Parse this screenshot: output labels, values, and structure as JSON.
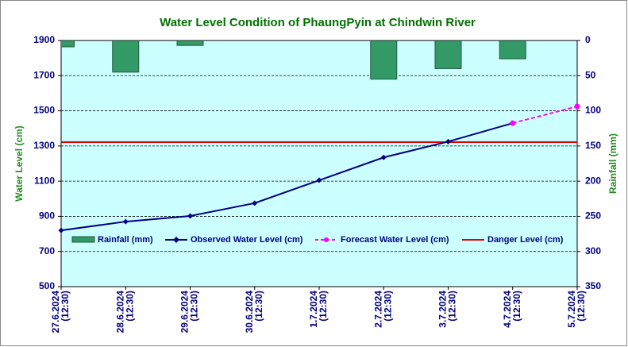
{
  "chart_data": {
    "type": "combo",
    "title": "Water Level Condition of PhaungPyin at Chindwin River",
    "y_label": "Water Level (cm)",
    "y2_label": "Rainfall (mm)",
    "categories": [
      [
        "27.6.2024",
        "(12:30)"
      ],
      [
        "28.6.2024",
        "(12:30)"
      ],
      [
        "29.6.2024",
        "(12:30)"
      ],
      [
        "30.6.2024",
        "(12:30)"
      ],
      [
        "1.7.2024",
        "(12:30)"
      ],
      [
        "2.7.2024",
        "(12:30)"
      ],
      [
        "3.7.2024",
        "(12:30)"
      ],
      [
        "4.7.2024",
        "(12:30)"
      ],
      [
        "5.7.2024",
        "(12:30)"
      ]
    ],
    "series": [
      {
        "name": "Rainfall (mm)",
        "type": "bar",
        "axis": "y2",
        "color": "#339966",
        "values": [
          9,
          45,
          7,
          0,
          0,
          55,
          40,
          26,
          0
        ]
      },
      {
        "name": "Observed Water Level (cm)",
        "type": "line",
        "color": "#000080",
        "dashed": false,
        "values": [
          820,
          870,
          902,
          975,
          1105,
          1235,
          1325,
          1430,
          null
        ]
      },
      {
        "name": "Forecast Water Level (cm)",
        "type": "line",
        "color": "#ff00ff",
        "dashed": true,
        "values": [
          null,
          null,
          null,
          null,
          null,
          null,
          null,
          1430,
          1525
        ]
      }
    ],
    "danger_level": {
      "name": "Danger Level (cm)",
      "value": 1322,
      "color": "#e00000"
    },
    "ylim": [
      500,
      1900
    ],
    "yticks": [
      500,
      700,
      900,
      1100,
      1300,
      1500,
      1700,
      1900
    ],
    "y2lim": [
      0,
      350
    ],
    "y2_inverted": true,
    "y2ticks": [
      0,
      50,
      100,
      150,
      200,
      250,
      300,
      350
    ],
    "grid": true
  }
}
